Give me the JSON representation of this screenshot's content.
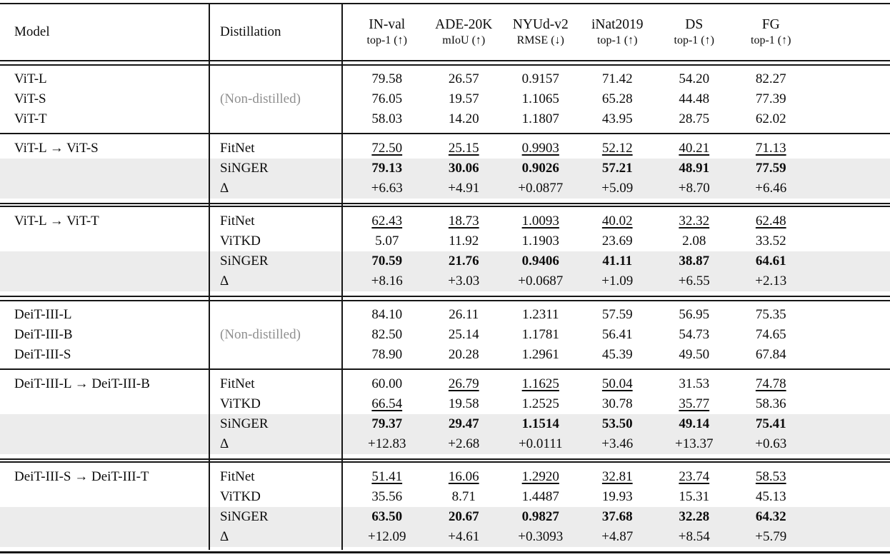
{
  "table": {
    "columns": [
      {
        "id": "model",
        "label": "Model"
      },
      {
        "id": "distillation",
        "label": "Distillation"
      },
      {
        "id": "in_val",
        "label": "IN-val",
        "sublabel": "top-1 (↑)"
      },
      {
        "id": "ade20k",
        "label": "ADE-20K",
        "sublabel": "mIoU (↑)"
      },
      {
        "id": "nyud_v2",
        "label": "NYUd-v2",
        "sublabel": "RMSE (↓)"
      },
      {
        "id": "inat2019",
        "label": "iNat2019",
        "sublabel": "top-1 (↑)"
      },
      {
        "id": "ds",
        "label": "DS",
        "sublabel": "top-1 (↑)"
      },
      {
        "id": "fg",
        "label": "FG",
        "sublabel": "top-1 (↑)"
      }
    ],
    "value_style_legend": {
      "u:": "underlined (runner-up)",
      "b:": "bold (best)"
    },
    "groups": [
      {
        "type": "baseline",
        "distillation_label": "(Non-distilled)",
        "rows": [
          {
            "model": "ViT-L",
            "values": [
              "79.58",
              "26.57",
              "0.9157",
              "71.42",
              "54.20",
              "82.27"
            ]
          },
          {
            "model": "ViT-S",
            "values": [
              "76.05",
              "19.57",
              "1.1065",
              "65.28",
              "44.48",
              "77.39"
            ]
          },
          {
            "model": "ViT-T",
            "values": [
              "58.03",
              "14.20",
              "1.1807",
              "43.95",
              "28.75",
              "62.02"
            ]
          }
        ],
        "rule_after": "single"
      },
      {
        "type": "experiment",
        "model": "ViT-L → ViT-S",
        "rows": [
          {
            "method": "FitNet",
            "highlight": false,
            "values": [
              "u:72.50",
              "u:25.15",
              "u:0.9903",
              "u:52.12",
              "u:40.21",
              "u:71.13"
            ]
          },
          {
            "method": "SiNGER",
            "highlight": true,
            "values": [
              "b:79.13",
              "b:30.06",
              "b:0.9026",
              "b:57.21",
              "b:48.91",
              "b:77.59"
            ]
          },
          {
            "method": "Δ",
            "highlight": true,
            "values": [
              "+6.63",
              "+4.91",
              "+0.0877",
              "+5.09",
              "+8.70",
              "+6.46"
            ]
          }
        ],
        "rule_after": "double_tight"
      },
      {
        "type": "experiment",
        "model": "ViT-L → ViT-T",
        "rows": [
          {
            "method": "FitNet",
            "highlight": false,
            "values": [
              "u:62.43",
              "u:18.73",
              "u:1.0093",
              "u:40.02",
              "u:32.32",
              "u:62.48"
            ]
          },
          {
            "method": "ViTKD",
            "highlight": false,
            "values": [
              "5.07",
              "11.92",
              "1.1903",
              "23.69",
              "2.08",
              "33.52"
            ]
          },
          {
            "method": "SiNGER",
            "highlight": true,
            "values": [
              "b:70.59",
              "b:21.76",
              "b:0.9406",
              "b:41.11",
              "b:38.87",
              "b:64.61"
            ]
          },
          {
            "method": "Δ",
            "highlight": true,
            "values": [
              "+8.16",
              "+3.03",
              "+0.0687",
              "+1.09",
              "+6.55",
              "+2.13"
            ]
          }
        ],
        "rule_after": "double"
      },
      {
        "type": "baseline",
        "distillation_label": "(Non-distilled)",
        "rows": [
          {
            "model": "DeiT-III-L",
            "values": [
              "84.10",
              "26.11",
              "1.2311",
              "57.59",
              "56.95",
              "75.35"
            ]
          },
          {
            "model": "DeiT-III-B",
            "values": [
              "82.50",
              "25.14",
              "1.1781",
              "56.41",
              "54.73",
              "74.65"
            ]
          },
          {
            "model": "DeiT-III-S",
            "values": [
              "78.90",
              "20.28",
              "1.2961",
              "45.39",
              "49.50",
              "67.84"
            ]
          }
        ],
        "rule_after": "single"
      },
      {
        "type": "experiment",
        "model": "DeiT-III-L → DeiT-III-B",
        "rows": [
          {
            "method": "FitNet",
            "highlight": false,
            "values": [
              "60.00",
              "u:26.79",
              "u:1.1625",
              "u:50.04",
              "31.53",
              "u:74.78"
            ]
          },
          {
            "method": "ViTKD",
            "highlight": false,
            "values": [
              "u:66.54",
              "19.58",
              "1.2525",
              "30.78",
              "u:35.77",
              "58.36"
            ]
          },
          {
            "method": "SiNGER",
            "highlight": true,
            "values": [
              "b:79.37",
              "b:29.47",
              "b:1.1514",
              "b:53.50",
              "b:49.14",
              "b:75.41"
            ]
          },
          {
            "method": "Δ",
            "highlight": true,
            "values": [
              "+12.83",
              "+2.68",
              "+0.0111",
              "+3.46",
              "+13.37",
              "+0.63"
            ]
          }
        ],
        "rule_after": "double_tight"
      },
      {
        "type": "experiment",
        "model": "DeiT-III-S → DeiT-III-T",
        "rows": [
          {
            "method": "FitNet",
            "highlight": false,
            "values": [
              "u:51.41",
              "u:16.06",
              "u:1.2920",
              "u:32.81",
              "u:23.74",
              "u:58.53"
            ]
          },
          {
            "method": "ViTKD",
            "highlight": false,
            "values": [
              "35.56",
              "8.71",
              "1.4487",
              "19.93",
              "15.31",
              "45.13"
            ]
          },
          {
            "method": "SiNGER",
            "highlight": true,
            "values": [
              "b:63.50",
              "b:20.67",
              "b:0.9827",
              "b:37.68",
              "b:32.28",
              "b:64.32"
            ]
          },
          {
            "method": "Δ",
            "highlight": true,
            "values": [
              "+12.09",
              "+4.61",
              "+0.3093",
              "+4.87",
              "+8.54",
              "+5.79"
            ]
          }
        ],
        "rule_after": "none"
      }
    ]
  },
  "colors": {
    "highlight_bg": "#ececec",
    "muted_text": "#8f8f8f",
    "rule": "#161616"
  }
}
